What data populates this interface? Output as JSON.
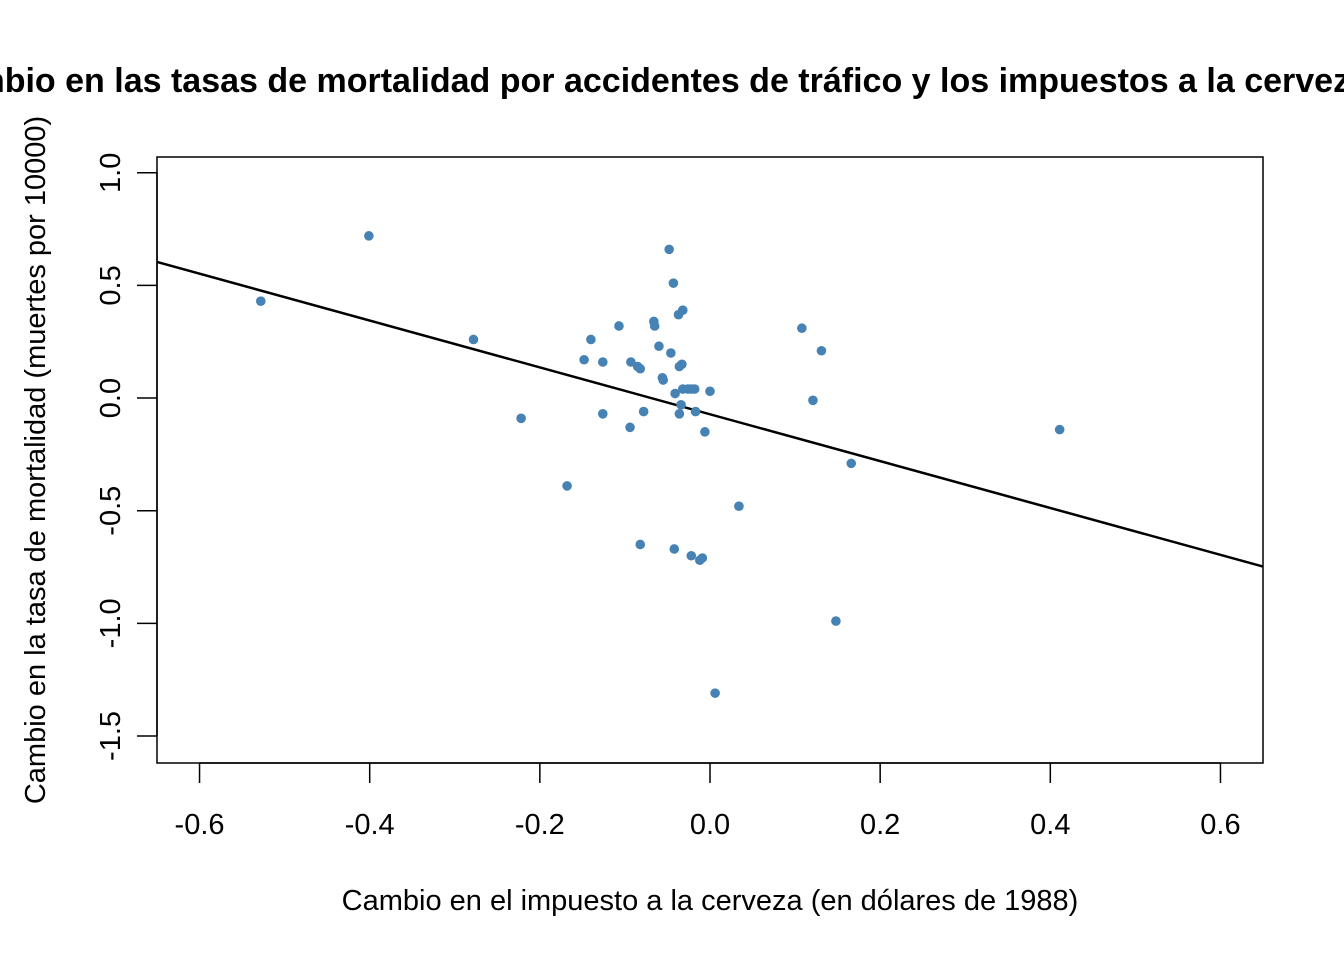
{
  "chart_data": {
    "type": "scatter",
    "title": "Cambio en las tasas de mortalidad por accidentes de tráfico y los impuestos a la cerveza",
    "xlabel": "Cambio en el impuesto a la cerveza (en dólares de 1988)",
    "ylabel": "Cambio en la tasa de mortalidad (muertes por 10000)",
    "xlim": [
      -0.65,
      0.65
    ],
    "ylim": [
      -1.62,
      1.07
    ],
    "x_ticks": [
      -0.6,
      -0.4,
      -0.2,
      0.0,
      0.2,
      0.4,
      0.6
    ],
    "x_tick_labels": [
      "-0.6",
      "-0.4",
      "-0.2",
      "0.0",
      "0.2",
      "0.4",
      "0.6"
    ],
    "y_ticks": [
      1.0,
      0.5,
      0.0,
      -0.5,
      -1.0,
      -1.5
    ],
    "y_tick_labels": [
      "1.0",
      "0.5",
      "0.0",
      "-0.5",
      "-1.0",
      "-1.5"
    ],
    "point_color": "#4682B4",
    "line_color": "#000000",
    "grid": false,
    "regression_line": {
      "intercept": -0.072,
      "slope": -1.04
    },
    "points": [
      [
        -0.528,
        0.43
      ],
      [
        -0.401,
        0.72
      ],
      [
        -0.278,
        0.26
      ],
      [
        -0.222,
        -0.09
      ],
      [
        -0.168,
        -0.39
      ],
      [
        -0.148,
        0.17
      ],
      [
        -0.14,
        0.26
      ],
      [
        -0.126,
        0.16
      ],
      [
        -0.126,
        -0.07
      ],
      [
        -0.107,
        0.32
      ],
      [
        -0.094,
        -0.13
      ],
      [
        -0.093,
        0.16
      ],
      [
        -0.085,
        0.14
      ],
      [
        -0.082,
        0.13
      ],
      [
        -0.082,
        -0.65
      ],
      [
        -0.078,
        -0.06
      ],
      [
        -0.066,
        0.34
      ],
      [
        -0.065,
        0.32
      ],
      [
        -0.06,
        0.23
      ],
      [
        -0.056,
        0.09
      ],
      [
        -0.055,
        0.08
      ],
      [
        -0.048,
        0.66
      ],
      [
        -0.046,
        0.2
      ],
      [
        -0.043,
        0.51
      ],
      [
        -0.042,
        -0.67
      ],
      [
        -0.041,
        0.02
      ],
      [
        -0.037,
        0.37
      ],
      [
        -0.036,
        0.14
      ],
      [
        -0.036,
        -0.07
      ],
      [
        -0.034,
        -0.03
      ],
      [
        -0.033,
        0.15
      ],
      [
        -0.032,
        0.39
      ],
      [
        -0.032,
        0.04
      ],
      [
        -0.026,
        0.04
      ],
      [
        -0.022,
        0.04
      ],
      [
        -0.022,
        -0.7
      ],
      [
        -0.018,
        0.04
      ],
      [
        -0.017,
        -0.06
      ],
      [
        -0.012,
        -0.72
      ],
      [
        -0.009,
        -0.71
      ],
      [
        -0.006,
        -0.15
      ],
      [
        0.0,
        0.03
      ],
      [
        0.006,
        -1.31
      ],
      [
        0.034,
        -0.48
      ],
      [
        0.108,
        0.31
      ],
      [
        0.121,
        -0.01
      ],
      [
        0.131,
        0.21
      ],
      [
        0.148,
        -0.99
      ],
      [
        0.166,
        -0.29
      ],
      [
        0.411,
        -0.14
      ]
    ]
  }
}
